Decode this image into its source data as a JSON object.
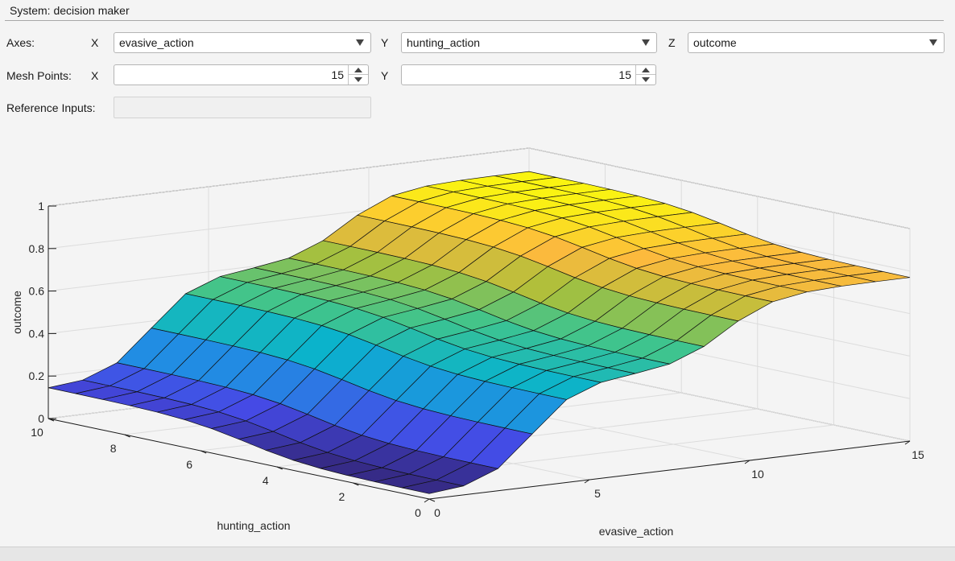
{
  "system": {
    "title": "System: decision maker"
  },
  "axes_row": {
    "label": "Axes:",
    "x_label": "X",
    "x_value": "evasive_action",
    "y_label": "Y",
    "y_value": "hunting_action",
    "z_label": "Z",
    "z_value": "outcome"
  },
  "mesh_row": {
    "label": "Mesh Points:",
    "x_label": "X",
    "x_value": "15",
    "y_label": "Y",
    "y_value": "15"
  },
  "reference": {
    "label": "Reference Inputs:",
    "value": ""
  },
  "chart_data": {
    "type": "surface",
    "xlabel": "evasive_action",
    "ylabel": "hunting_action",
    "zlabel": "outcome",
    "xlim": [
      0,
      15
    ],
    "ylim": [
      0,
      10
    ],
    "zlim": [
      0,
      1
    ],
    "x_ticks": [
      "0",
      "5",
      "10",
      "15"
    ],
    "y_ticks": [
      "0",
      "2",
      "4",
      "6",
      "8",
      "10"
    ],
    "z_ticks": [
      "0",
      "0.2",
      "0.4",
      "0.6",
      "0.8",
      "1"
    ],
    "mesh_points": [
      15,
      15
    ],
    "grid": true,
    "colormap": "parula",
    "description_values": {
      "z_min_approx": 0.05,
      "z_max_approx": 0.9
    }
  }
}
